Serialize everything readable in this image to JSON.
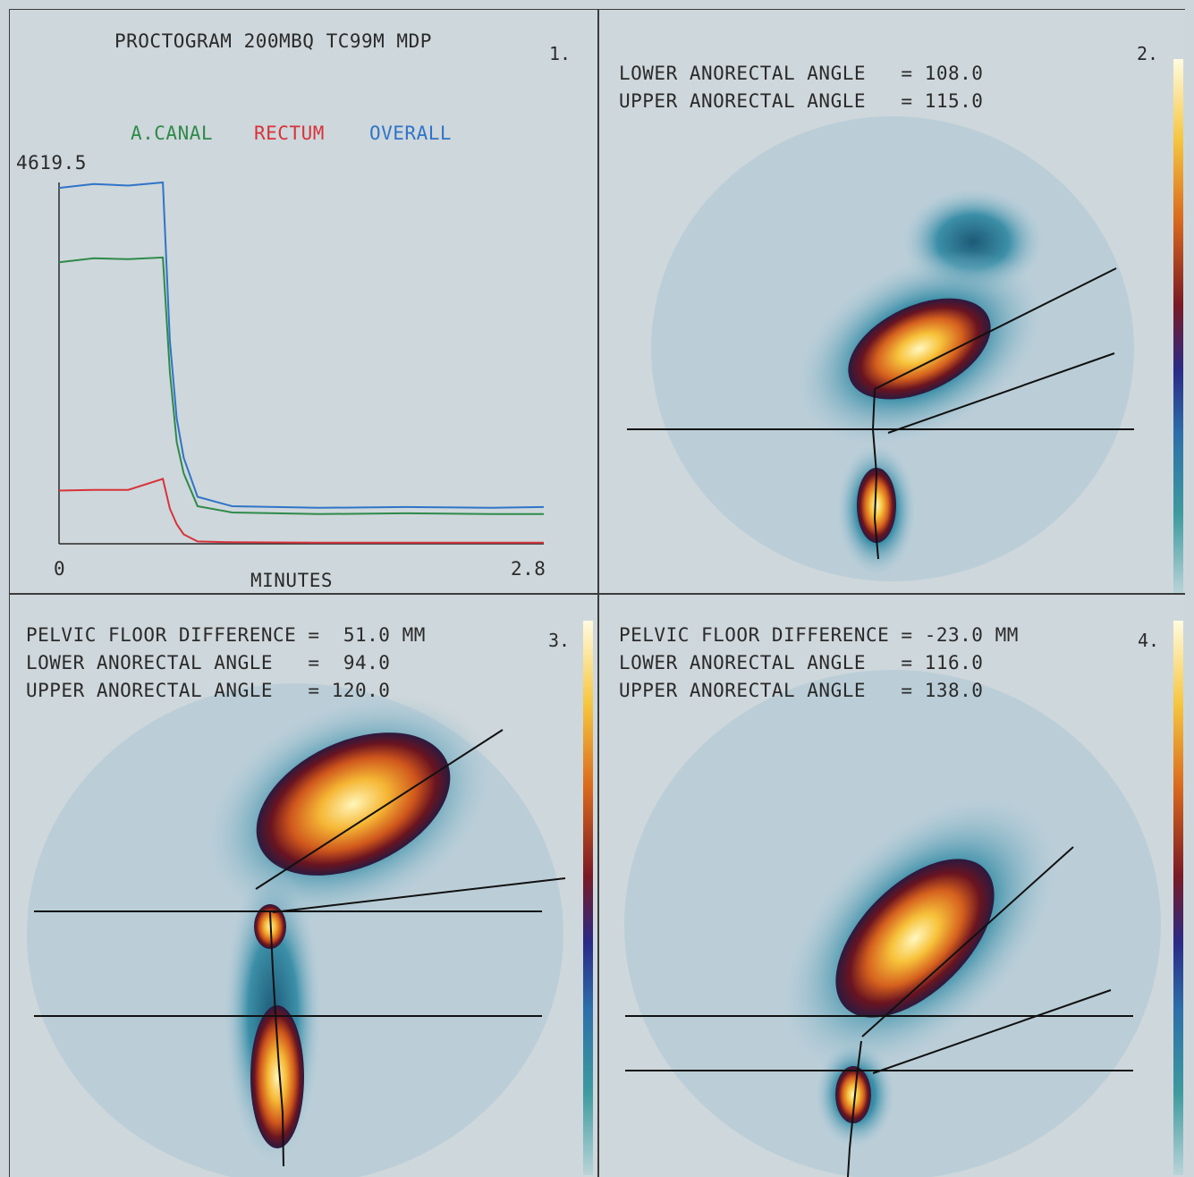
{
  "panel1": {
    "title": "PROCTOGRAM 200MBQ TC99M MDP",
    "number": "1.",
    "legend": [
      {
        "label": "A.CANAL",
        "color": "#2e8a4a"
      },
      {
        "label": "RECTUM",
        "color": "#d8323a"
      },
      {
        "label": "OVERALL",
        "color": "#2f74c8"
      }
    ],
    "ymax_label": "4619.5",
    "x_start_label": "0",
    "x_end_label": "2.8",
    "xlabel": "MINUTES"
  },
  "chart_data": {
    "type": "line",
    "xlim": [
      0,
      2.8
    ],
    "ylim": [
      0,
      4619.5
    ],
    "grid": false,
    "legend_placement": "top",
    "x": [
      0,
      0.2,
      0.4,
      0.6,
      0.64,
      0.68,
      0.72,
      0.8,
      1.0,
      1.5,
      2.0,
      2.5,
      2.8
    ],
    "series": [
      {
        "name": "OVERALL",
        "color": "#2f74c8",
        "values": [
          4550,
          4600,
          4580,
          4619,
          2600,
          1600,
          1100,
          600,
          480,
          460,
          470,
          460,
          470
        ]
      },
      {
        "name": "A.CANAL",
        "color": "#2e8a4a",
        "values": [
          3600,
          3650,
          3640,
          3660,
          2200,
          1300,
          900,
          480,
          400,
          380,
          390,
          380,
          380
        ]
      },
      {
        "name": "RECTUM",
        "color": "#d8323a",
        "values": [
          680,
          690,
          690,
          830,
          450,
          250,
          120,
          30,
          20,
          15,
          15,
          15,
          15
        ]
      }
    ]
  },
  "panel2": {
    "number": "2.",
    "lines": [
      "LOWER ANORECTAL ANGLE   = 108.0",
      "UPPER ANORECTAL ANGLE   = 115.0"
    ]
  },
  "panel3": {
    "number": "3.",
    "lines": [
      "PELVIC FLOOR DIFFERENCE =  51.0 MM",
      "LOWER ANORECTAL ANGLE   =  94.0",
      "UPPER ANORECTAL ANGLE   = 120.0"
    ]
  },
  "panel4": {
    "number": "4.",
    "lines": [
      "PELVIC FLOOR DIFFERENCE = -23.0 MM",
      "LOWER ANORECTAL ANGLE   = 116.0",
      "UPPER ANORECTAL ANGLE   = 138.0"
    ]
  }
}
